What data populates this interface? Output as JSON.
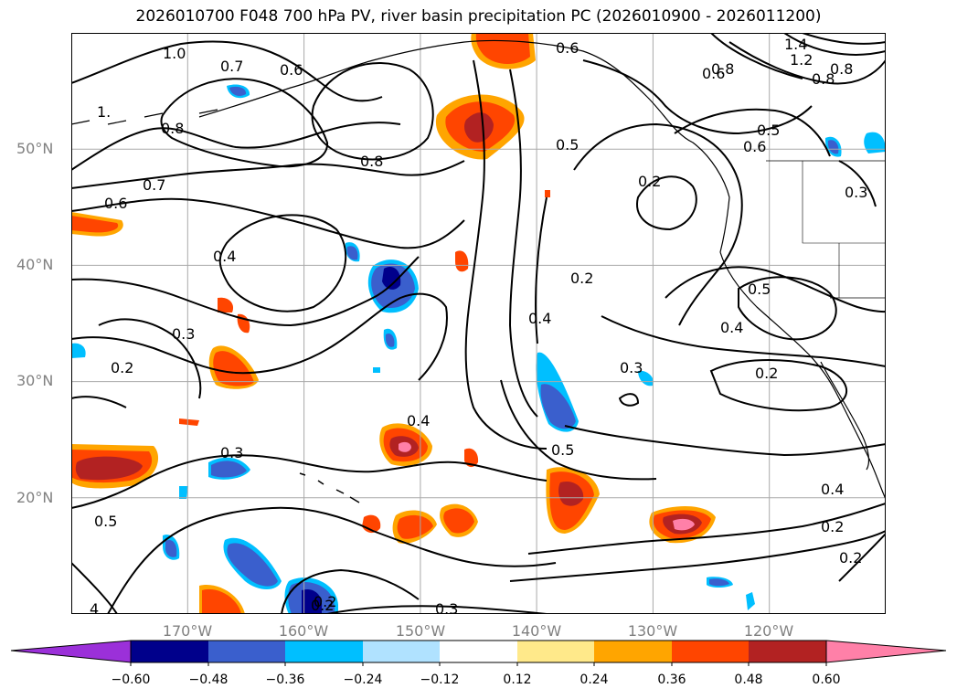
{
  "title": "2026010700 F048 700 hPa PV, river basin precipitation PC (2026010900 - 2026011200)",
  "lat_labels": [
    "50°N",
    "40°N",
    "30°N",
    "20°N"
  ],
  "lon_labels": [
    "170°W",
    "160°W",
    "150°W",
    "140°W",
    "130°W",
    "120°W"
  ],
  "map_extent": {
    "lon_min": -180,
    "lon_max": -110,
    "lat_min": 10,
    "lat_max": 60
  },
  "colorbar": {
    "ticks": [
      "−0.60",
      "−0.48",
      "−0.36",
      "−0.24",
      "−0.12",
      "0.12",
      "0.24",
      "0.36",
      "0.48",
      "0.60"
    ],
    "under_color": "#9b30d9",
    "over_color": "#ff80a8",
    "bins": [
      {
        "from": -0.6,
        "to": -0.48,
        "color": "#00008b"
      },
      {
        "from": -0.48,
        "to": -0.36,
        "color": "#3a5fcd"
      },
      {
        "from": -0.36,
        "to": -0.24,
        "color": "#00bfff"
      },
      {
        "from": -0.24,
        "to": -0.12,
        "color": "#b0e2ff"
      },
      {
        "from": -0.12,
        "to": 0.12,
        "color": "#ffffff"
      },
      {
        "from": 0.12,
        "to": 0.24,
        "color": "#ffe98a"
      },
      {
        "from": 0.24,
        "to": 0.36,
        "color": "#ffa500"
      },
      {
        "from": 0.36,
        "to": 0.48,
        "color": "#ff4500"
      },
      {
        "from": 0.48,
        "to": 0.6,
        "color": "#b22222"
      }
    ]
  },
  "contour_labels": [
    "1.0",
    "0.7",
    "0.6",
    "1.",
    "0.8",
    "0.8",
    "0.7",
    "0.6",
    "0.4",
    "0.3",
    "0.2",
    "0.3",
    "0.2",
    "0.4",
    "0.4",
    "0.3",
    "0.5",
    "0.2",
    "0.2",
    "0.5",
    "0.4",
    "0.2",
    "0.5",
    "0.6",
    "0.8",
    "1.4",
    "1.2",
    "0.8",
    "0.5",
    "0.3",
    "0.4",
    "0.2",
    "0.2",
    "0.5",
    "0.2",
    "0.3",
    "4",
    "0.6",
    "0.8",
    "0.6"
  ],
  "legend": {
    "under_label": "",
    "over_label": ""
  }
}
